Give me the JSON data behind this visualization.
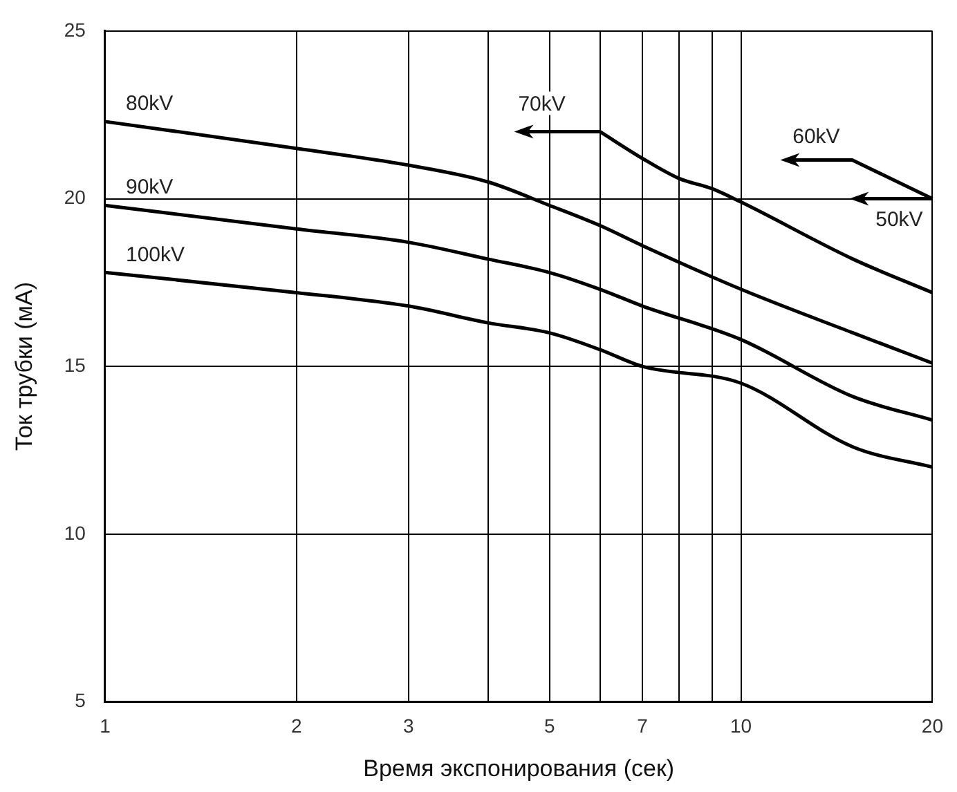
{
  "chart_data": {
    "type": "line",
    "xlabel": "Время экспонирования (сек)",
    "ylabel": "Ток трубки (мА)",
    "x": [
      1,
      2,
      3,
      4,
      5,
      6,
      7,
      10,
      15,
      20
    ],
    "series": [
      {
        "name": "80kV",
        "color": "#000000",
        "values": [
          22.3,
          21.5,
          21.0,
          20.5,
          19.8,
          19.2,
          18.6,
          17.3,
          16.0,
          15.1
        ]
      },
      {
        "name": "90kV",
        "color": "#000000",
        "values": [
          19.8,
          19.1,
          18.7,
          18.2,
          17.8,
          17.3,
          16.8,
          15.8,
          14.1,
          13.4
        ]
      },
      {
        "name": "100kV",
        "color": "#000000",
        "values": [
          17.8,
          17.2,
          16.8,
          16.3,
          16.0,
          15.5,
          15.0,
          14.5,
          12.6,
          12.0
        ]
      },
      {
        "name": "70kV",
        "color": "#000000",
        "x": [
          6,
          7,
          8,
          9,
          10,
          15,
          20
        ],
        "values": [
          22.0,
          21.2,
          20.6,
          20.3,
          19.9,
          18.2,
          17.2
        ]
      }
    ],
    "annotations": [
      "60kV",
      "50kV"
    ],
    "log": "x",
    "xlim": [
      1,
      20
    ],
    "ylim": [
      5,
      25
    ],
    "xticks": [
      1,
      2,
      3,
      {
        "value": 4,
        "label": null
      },
      5,
      {
        "value": 6,
        "label": null
      },
      7,
      {
        "value": 8,
        "label": null
      },
      {
        "value": 9,
        "label": null
      },
      10,
      20
    ],
    "yticks": [
      5,
      10,
      15,
      20,
      25
    ],
    "grid": true,
    "legend": false,
    "marker": "none",
    "line_style": "solid"
  }
}
